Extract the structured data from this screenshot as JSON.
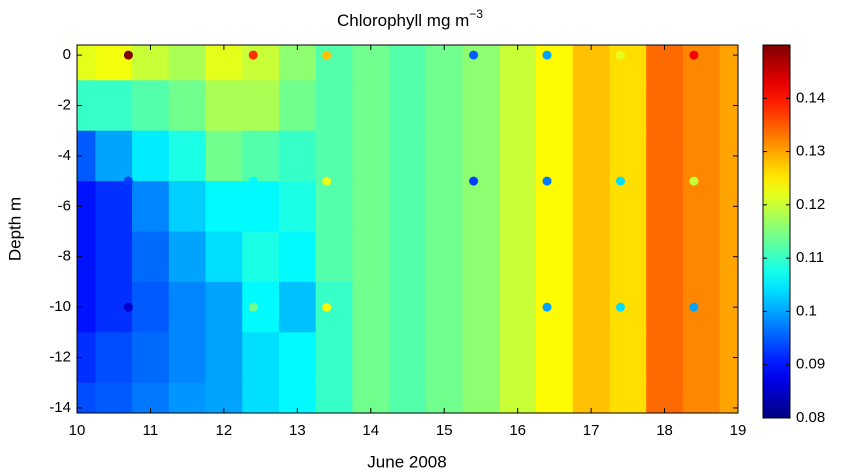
{
  "chart_data": {
    "type": "heatmap",
    "title": "Chlorophyll mg m",
    "title_exponent": "−3",
    "xlabel": "June 2008",
    "ylabel": "Depth m",
    "xlim": [
      10,
      19
    ],
    "xticks": [
      10,
      11,
      12,
      13,
      14,
      15,
      16,
      17,
      18,
      19
    ],
    "ylim": [
      -14.2,
      0.4
    ],
    "yticks": [
      -14,
      -12,
      -10,
      -8,
      -6,
      -4,
      -2,
      0
    ],
    "clim": [
      0.08,
      0.15
    ],
    "cticks": [
      0.08,
      0.09,
      0.1,
      0.11,
      0.12,
      0.13,
      0.14
    ],
    "colormap": "jet",
    "x": [
      10,
      10.5,
      11,
      11.5,
      12,
      12.5,
      13,
      13.5,
      14,
      14.5,
      15,
      15.5,
      16,
      16.5,
      17,
      17.5,
      18,
      18.5,
      19
    ],
    "y": [
      0,
      -2,
      -4,
      -6,
      -8,
      -10,
      -12,
      -14
    ],
    "z": [
      [
        0.122,
        0.123,
        0.12,
        0.118,
        0.122,
        0.12,
        0.116,
        0.112,
        0.114,
        0.112,
        0.114,
        0.116,
        0.12,
        0.124,
        0.128,
        0.126,
        0.134,
        0.132,
        0.13
      ],
      [
        0.11,
        0.11,
        0.112,
        0.114,
        0.118,
        0.118,
        0.114,
        0.112,
        0.114,
        0.112,
        0.114,
        0.116,
        0.12,
        0.124,
        0.128,
        0.126,
        0.134,
        0.132,
        0.13
      ],
      [
        0.095,
        0.1,
        0.105,
        0.108,
        0.114,
        0.112,
        0.11,
        0.112,
        0.114,
        0.112,
        0.114,
        0.116,
        0.12,
        0.124,
        0.128,
        0.126,
        0.134,
        0.132,
        0.13
      ],
      [
        0.09,
        0.092,
        0.098,
        0.103,
        0.106,
        0.106,
        0.108,
        0.112,
        0.114,
        0.112,
        0.114,
        0.116,
        0.12,
        0.124,
        0.128,
        0.126,
        0.134,
        0.132,
        0.13
      ],
      [
        0.09,
        0.092,
        0.096,
        0.1,
        0.104,
        0.108,
        0.106,
        0.112,
        0.114,
        0.112,
        0.114,
        0.116,
        0.12,
        0.124,
        0.128,
        0.126,
        0.134,
        0.132,
        0.13
      ],
      [
        0.09,
        0.092,
        0.095,
        0.098,
        0.1,
        0.106,
        0.102,
        0.11,
        0.114,
        0.112,
        0.114,
        0.116,
        0.12,
        0.124,
        0.128,
        0.126,
        0.134,
        0.132,
        0.13
      ],
      [
        0.092,
        0.094,
        0.096,
        0.098,
        0.1,
        0.104,
        0.106,
        0.11,
        0.114,
        0.112,
        0.114,
        0.116,
        0.12,
        0.124,
        0.128,
        0.126,
        0.134,
        0.132,
        0.13
      ],
      [
        0.094,
        0.095,
        0.097,
        0.099,
        0.1,
        0.104,
        0.106,
        0.11,
        0.114,
        0.112,
        0.114,
        0.116,
        0.12,
        0.124,
        0.128,
        0.126,
        0.134,
        0.132,
        0.13
      ]
    ],
    "points": {
      "x": [
        10.7,
        12.4,
        13.4,
        15.4,
        16.4,
        17.4,
        18.4,
        10.7,
        12.4,
        13.4,
        15.4,
        16.4,
        17.4,
        18.4,
        10.7,
        12.4,
        13.4,
        16.4,
        17.4,
        18.4
      ],
      "y": [
        0,
        0,
        0,
        0,
        0,
        0,
        0,
        -5,
        -5,
        -5,
        -5,
        -5,
        -5,
        -5,
        -10,
        -10,
        -10,
        -10,
        -10,
        -10
      ],
      "values": [
        0.15,
        0.138,
        0.128,
        0.095,
        0.1,
        0.122,
        0.142,
        0.093,
        0.106,
        0.122,
        0.093,
        0.097,
        0.104,
        0.12,
        0.085,
        0.114,
        0.124,
        0.1,
        0.104,
        0.1
      ]
    }
  }
}
